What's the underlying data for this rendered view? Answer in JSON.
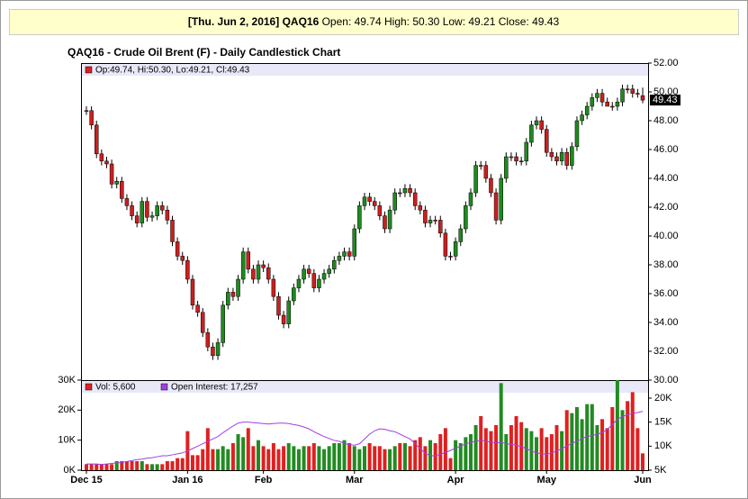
{
  "header": {
    "date": "[Thu. Jun 2, 2016]",
    "symbol": "QAQ16",
    "quote": "Open: 49.74 High: 50.30 Low: 49.21 Close: 49.43"
  },
  "chart_data": [
    {
      "type": "candlestick",
      "title": "QAQ16 - Crude Oil Brent (F) - Daily Candlestick Chart",
      "legend": "Op:49.74, Hi:50.30, Lo:49.21, Cl:49.43",
      "legend_color": "#dd1f1f",
      "up_color": "#1f8a1f",
      "down_color": "#cc1f1f",
      "open": [
        48.7,
        48.7,
        47.7,
        45.7,
        45.2,
        45.0,
        43.6,
        43.8,
        42.6,
        42.1,
        41.4,
        40.9,
        42.4,
        41.3,
        41.4,
        42.1,
        41.8,
        41.1,
        39.6,
        38.6,
        38.3,
        37.0,
        35.2,
        34.7,
        33.3,
        32.3,
        31.7,
        32.6,
        35.2,
        36.1,
        35.8,
        37.0,
        38.9,
        37.7,
        37.0,
        38.0,
        37.8,
        37.0,
        35.8,
        34.5,
        33.9,
        35.5,
        36.4,
        37.0,
        37.7,
        37.4,
        36.4,
        37.0,
        37.4,
        37.7,
        38.3,
        38.6,
        38.9,
        38.6,
        40.5,
        42.1,
        42.7,
        42.4,
        42.1,
        41.4,
        40.5,
        41.8,
        43.0,
        43.0,
        43.3,
        43.0,
        42.1,
        41.8,
        40.9,
        41.1,
        41.1,
        40.2,
        38.6,
        38.6,
        39.6,
        40.5,
        42.1,
        43.0,
        44.9,
        44.9,
        44.0,
        43.0,
        41.1,
        44.0,
        45.5,
        45.5,
        45.2,
        45.2,
        46.5,
        47.7,
        48.0,
        47.4,
        45.8,
        45.5,
        45.2,
        45.8,
        44.9,
        46.2,
        48.0,
        48.4,
        49.0,
        49.6,
        49.9,
        49.3,
        49.0,
        49.0,
        49.3,
        50.2,
        50.2,
        49.9,
        49.74
      ],
      "high": [
        49.0,
        49.0,
        48.0,
        46.0,
        45.5,
        45.3,
        44.1,
        44.1,
        42.9,
        42.4,
        41.7,
        42.7,
        42.7,
        41.7,
        42.4,
        42.4,
        42.1,
        41.4,
        39.9,
        38.9,
        38.6,
        37.3,
        35.5,
        35.0,
        33.6,
        32.6,
        32.9,
        35.5,
        36.4,
        36.4,
        37.3,
        39.2,
        39.2,
        38.0,
        38.3,
        38.3,
        38.1,
        37.3,
        36.1,
        34.8,
        35.8,
        36.7,
        37.3,
        38.0,
        38.0,
        37.7,
        37.3,
        37.7,
        38.0,
        38.6,
        38.9,
        39.2,
        39.2,
        40.8,
        42.4,
        43.0,
        43.0,
        42.7,
        42.4,
        41.7,
        42.1,
        43.3,
        43.3,
        43.6,
        43.6,
        43.3,
        42.4,
        42.1,
        41.4,
        41.4,
        41.4,
        40.5,
        38.9,
        39.9,
        40.8,
        42.4,
        43.3,
        45.2,
        45.2,
        45.2,
        44.3,
        43.3,
        44.3,
        45.8,
        45.8,
        45.8,
        45.5,
        46.8,
        48.0,
        48.3,
        48.3,
        47.7,
        46.1,
        45.8,
        46.1,
        46.1,
        46.5,
        48.3,
        48.7,
        49.3,
        49.9,
        50.2,
        50.2,
        49.6,
        49.3,
        49.6,
        50.5,
        50.5,
        50.5,
        50.2,
        50.3
      ],
      "low": [
        48.4,
        47.4,
        45.4,
        44.9,
        44.7,
        43.3,
        43.3,
        42.3,
        41.8,
        41.1,
        40.6,
        40.6,
        41.0,
        41.0,
        41.1,
        41.5,
        40.8,
        39.3,
        38.3,
        38.0,
        36.7,
        34.9,
        34.4,
        33.0,
        32.0,
        31.4,
        31.4,
        32.3,
        34.9,
        35.5,
        35.5,
        36.7,
        37.4,
        36.7,
        36.7,
        37.5,
        36.7,
        35.5,
        34.2,
        33.6,
        33.6,
        35.2,
        36.1,
        36.7,
        37.1,
        36.1,
        36.1,
        36.7,
        37.1,
        37.4,
        38.0,
        38.3,
        38.3,
        38.3,
        40.2,
        41.8,
        42.1,
        41.8,
        41.1,
        40.2,
        40.2,
        41.5,
        42.7,
        42.7,
        42.7,
        41.8,
        41.5,
        40.6,
        40.6,
        40.8,
        39.9,
        38.3,
        38.3,
        38.3,
        39.3,
        40.2,
        41.8,
        42.7,
        44.6,
        43.7,
        42.7,
        40.8,
        40.8,
        43.7,
        45.2,
        44.9,
        44.9,
        44.9,
        46.2,
        47.4,
        47.1,
        45.5,
        45.2,
        44.9,
        44.9,
        44.6,
        44.6,
        45.9,
        47.7,
        48.1,
        48.7,
        49.3,
        49.0,
        49.0,
        48.7,
        48.7,
        49.0,
        49.9,
        49.6,
        49.6,
        49.21
      ],
      "close": [
        48.7,
        47.7,
        45.7,
        45.2,
        45.0,
        43.6,
        43.8,
        42.6,
        42.1,
        41.4,
        40.9,
        42.4,
        41.3,
        41.4,
        42.1,
        41.8,
        41.1,
        39.6,
        38.6,
        38.3,
        37.0,
        35.2,
        34.7,
        33.3,
        32.3,
        31.7,
        32.6,
        35.2,
        36.1,
        35.8,
        37.0,
        38.9,
        37.7,
        37.0,
        38.0,
        37.8,
        37.0,
        35.8,
        34.5,
        33.9,
        35.5,
        36.4,
        37.0,
        37.7,
        37.4,
        36.4,
        37.0,
        37.4,
        37.7,
        38.3,
        38.6,
        38.9,
        38.6,
        40.5,
        42.1,
        42.7,
        42.4,
        42.1,
        41.4,
        40.5,
        41.8,
        43.0,
        43.0,
        43.3,
        43.0,
        42.1,
        41.8,
        40.9,
        41.1,
        41.1,
        40.2,
        38.6,
        38.6,
        39.6,
        40.5,
        42.1,
        43.0,
        44.9,
        44.9,
        44.0,
        43.0,
        41.1,
        44.0,
        45.5,
        45.5,
        45.2,
        45.2,
        46.5,
        47.7,
        48.0,
        47.4,
        45.8,
        45.5,
        45.2,
        45.8,
        44.9,
        46.2,
        48.0,
        48.4,
        49.0,
        49.6,
        49.9,
        49.3,
        49.0,
        49.0,
        49.3,
        50.2,
        50.2,
        49.9,
        49.9,
        49.43
      ],
      "ylim": [
        30,
        52
      ],
      "yticks": [
        {
          "value": 30,
          "label": "30.00"
        },
        {
          "value": 32,
          "label": "32.00"
        },
        {
          "value": 34,
          "label": "34.00"
        },
        {
          "value": 36,
          "label": "36.00"
        },
        {
          "value": 38,
          "label": "38.00"
        },
        {
          "value": 40,
          "label": "40.00"
        },
        {
          "value": 42,
          "label": "42.00"
        },
        {
          "value": 44,
          "label": "44.00"
        },
        {
          "value": 46,
          "label": "46.00"
        },
        {
          "value": 48,
          "label": "48.00"
        },
        {
          "value": 50,
          "label": "50.00"
        },
        {
          "value": 52,
          "label": "52.00"
        }
      ],
      "grid": false
    },
    {
      "type": "bar",
      "categories": [
        "Dec 15",
        null,
        null,
        null,
        null,
        null,
        null,
        null,
        null,
        null,
        null,
        null,
        null,
        null,
        null,
        null,
        null,
        null,
        null,
        null,
        "Jan 16",
        null,
        null,
        null,
        null,
        null,
        null,
        null,
        null,
        null,
        null,
        null,
        null,
        null,
        null,
        "Feb",
        null,
        null,
        null,
        null,
        null,
        null,
        null,
        null,
        null,
        null,
        null,
        null,
        null,
        null,
        null,
        null,
        null,
        "Mar",
        null,
        null,
        null,
        null,
        null,
        null,
        null,
        null,
        null,
        null,
        null,
        null,
        null,
        null,
        null,
        null,
        null,
        null,
        null,
        "Apr",
        null,
        null,
        null,
        null,
        null,
        null,
        null,
        null,
        null,
        null,
        null,
        null,
        null,
        null,
        null,
        null,
        null,
        "May",
        null,
        null,
        null,
        null,
        null,
        null,
        null,
        null,
        null,
        null,
        null,
        null,
        null,
        null,
        null,
        null,
        null,
        null,
        "Jun"
      ],
      "series": [
        {
          "name": "Vol: 5,600",
          "color": "#e02020",
          "up_color": "#228b22",
          "values": [
            2000,
            2000,
            2000,
            2000,
            2000,
            2000,
            3000,
            3000,
            3000,
            3000,
            3000,
            3000,
            2000,
            2000,
            2000,
            2000,
            3000,
            3000,
            4000,
            4000,
            13000,
            5000,
            5000,
            7000,
            14000,
            7000,
            7000,
            8000,
            7000,
            9000,
            12000,
            11000,
            14000,
            8000,
            10000,
            8000,
            7000,
            9000,
            7000,
            8000,
            9000,
            8000,
            7000,
            8000,
            8000,
            9000,
            8000,
            7000,
            8000,
            9000,
            9000,
            10000,
            9000,
            8000,
            7000,
            8000,
            9000,
            8000,
            8000,
            7000,
            7000,
            8000,
            9000,
            9000,
            8000,
            10000,
            11000,
            8000,
            10000,
            9000,
            12000,
            14000,
            4000,
            10000,
            9000,
            11000,
            12000,
            15000,
            18000,
            14000,
            13000,
            15000,
            29000,
            12000,
            15000,
            18000,
            16000,
            14000,
            13000,
            11000,
            14000,
            11000,
            12000,
            15000,
            13000,
            20000,
            19000,
            21000,
            17000,
            22000,
            22000,
            15000,
            17000,
            14000,
            21000,
            30000,
            20000,
            23000,
            26000,
            14000,
            5600
          ]
        },
        {
          "name": "Open Interest: 17,257",
          "color": "#a23ee6",
          "type": "line",
          "axis": "y2",
          "values": [
            6300,
            6300,
            6300,
            6200,
            6300,
            6400,
            6500,
            6600,
            6800,
            7000,
            7200,
            7300,
            7500,
            7600,
            7800,
            8000,
            8000,
            8200,
            8400,
            8600,
            9000,
            9500,
            10000,
            10500,
            11000,
            11500,
            12000,
            12800,
            13500,
            14200,
            14800,
            15000,
            15000,
            14900,
            14800,
            14700,
            14600,
            14700,
            14800,
            14800,
            14700,
            14500,
            14300,
            14000,
            13600,
            13000,
            12500,
            12000,
            11600,
            11200,
            11000,
            10600,
            10300,
            10200,
            10500,
            11500,
            12500,
            13200,
            13600,
            13500,
            13200,
            13000,
            12500,
            12000,
            11500,
            10500,
            9500,
            8500,
            8000,
            8000,
            8300,
            8700,
            9100,
            9600,
            10000,
            10500,
            10800,
            11000,
            11200,
            11000,
            10800,
            10700,
            10800,
            10500,
            10400,
            10200,
            9900,
            9500,
            9000,
            8600,
            8400,
            8300,
            8600,
            9000,
            9500,
            10000,
            10600,
            11000,
            11600,
            12000,
            12200,
            12500,
            12800,
            13500,
            14500,
            15600,
            16200,
            16500,
            16800,
            17000,
            17257
          ]
        }
      ],
      "ylim": [
        0,
        30000
      ],
      "yticks": [
        {
          "value": 0,
          "label": "0K"
        },
        {
          "value": 10000,
          "label": "10K"
        },
        {
          "value": 20000,
          "label": "20K"
        },
        {
          "value": 30000,
          "label": "30K"
        }
      ],
      "y2lim": [
        5000,
        23750
      ],
      "y2ticks": [
        {
          "value": 5000,
          "label": "5K"
        },
        {
          "value": 10000,
          "label": "10K"
        },
        {
          "value": 15000,
          "label": "15K"
        },
        {
          "value": 20000,
          "label": "20K"
        }
      ],
      "grid": false
    }
  ]
}
